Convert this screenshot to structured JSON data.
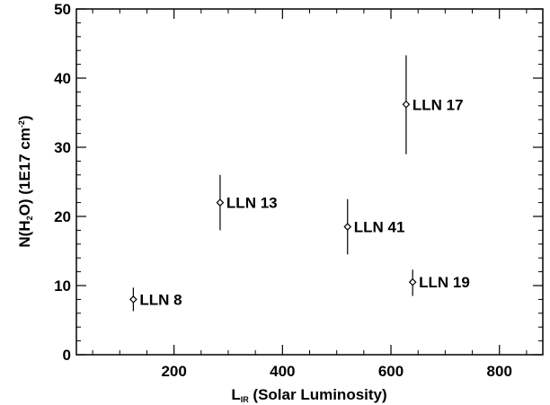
{
  "chart_data": {
    "type": "scatter",
    "xlim": [
      20,
      880
    ],
    "ylim": [
      0,
      50
    ],
    "x_ticks": [
      "200",
      "400",
      "600",
      "800"
    ],
    "y_ticks": [
      "0",
      "10",
      "20",
      "30",
      "40",
      "50"
    ],
    "xlabel": {
      "main": "L",
      "sub": "IR",
      "rest": " (Solar Luminosity)"
    },
    "ylabel": {
      "p1": "N(H",
      "sub": "2",
      "p2": "O) (1E17 cm",
      "sup": "-2",
      "p3": ")"
    },
    "points": [
      {
        "label": "LLN 8",
        "x": 125,
        "y": 8.0,
        "err_low": 6.3,
        "err_high": 9.7
      },
      {
        "label": "LLN 13",
        "x": 285,
        "y": 22.0,
        "err_low": 18.0,
        "err_high": 26.0
      },
      {
        "label": "LLN 17",
        "x": 628,
        "y": 36.2,
        "err_low": 29.0,
        "err_high": 43.3
      },
      {
        "label": "LLN 41",
        "x": 520,
        "y": 18.5,
        "err_low": 14.5,
        "err_high": 22.5
      },
      {
        "label": "LLN 19",
        "x": 640,
        "y": 10.5,
        "err_low": 8.5,
        "err_high": 12.3
      }
    ],
    "grid": false,
    "legend": "none"
  }
}
